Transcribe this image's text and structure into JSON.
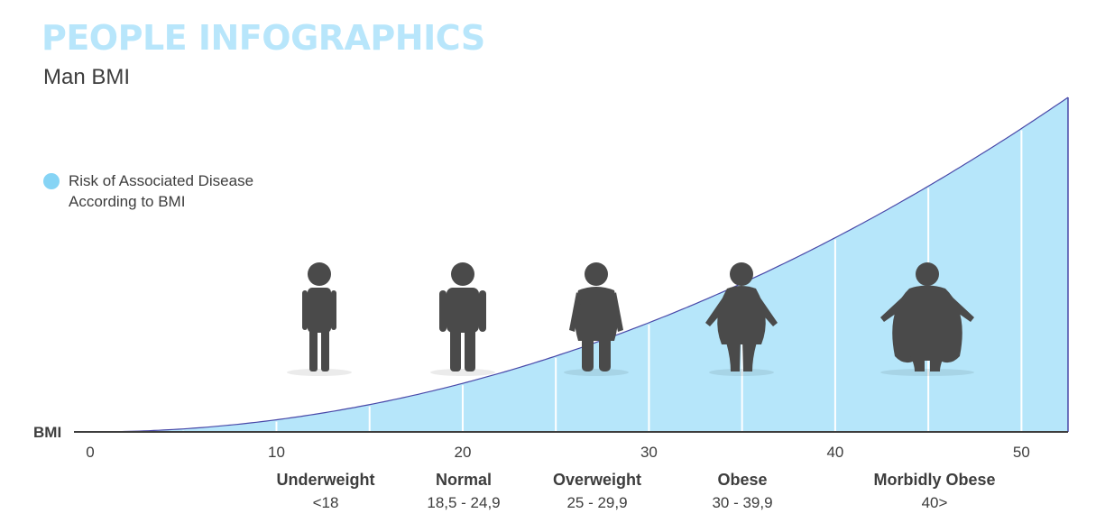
{
  "header": {
    "title": "PEOPLE INFOGRAPHICS",
    "subtitle": "Man BMI"
  },
  "legend": {
    "line1": "Risk of Associated Disease",
    "line2": "According to BMI",
    "color": "#86d4f5"
  },
  "colors": {
    "area_fill": "#b6e6fa",
    "area_line": "#4848a8",
    "figure": "#4a4a4a",
    "axis": "#3d3d3d"
  },
  "chart_data": {
    "type": "area",
    "title": "Man BMI",
    "xlabel": "BMI",
    "xlim": [
      0,
      52.5
    ],
    "x_ticks": [
      "0",
      "10",
      "20",
      "30",
      "40",
      "50"
    ],
    "grid": "vertical lines every 5",
    "curve": {
      "x": [
        0,
        5,
        10,
        15,
        20,
        25,
        30,
        35,
        40,
        45,
        50,
        52.5
      ],
      "y": [
        0,
        1,
        4,
        9,
        16,
        25,
        36,
        49,
        64,
        81,
        100,
        110
      ]
    },
    "categories": [
      {
        "name": "Underweight",
        "range": "<18",
        "center_bmi": 12.5,
        "figure": "thin"
      },
      {
        "name": "Normal",
        "range": "18,5 - 24,9",
        "center_bmi": 20,
        "figure": "normal"
      },
      {
        "name": "Overweight",
        "range": "25 - 29,9",
        "center_bmi": 27.5,
        "figure": "overweight"
      },
      {
        "name": "Obese",
        "range": "30 - 39,9",
        "center_bmi": 35,
        "figure": "obese"
      },
      {
        "name": "Morbidly Obese",
        "range": "40>",
        "center_bmi": 45,
        "figure": "morbid"
      }
    ]
  }
}
